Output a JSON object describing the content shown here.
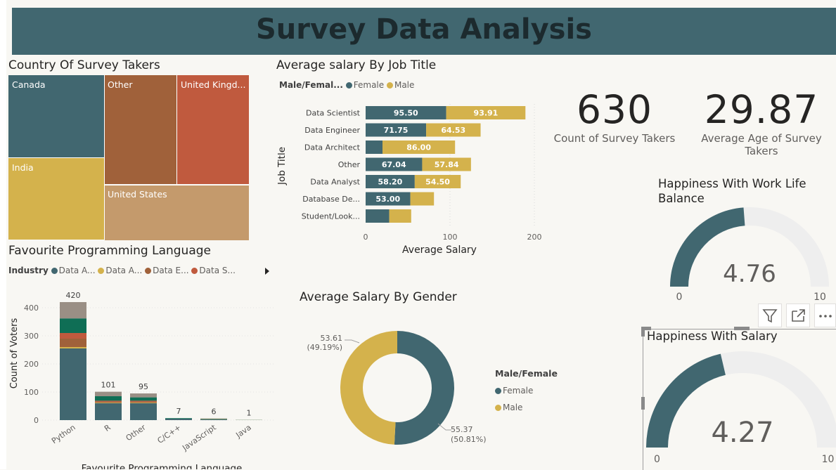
{
  "title": "Survey Data Analysis",
  "colors": {
    "header_bg": "#416770",
    "teal": "#416770",
    "gold": "#d4b24c",
    "brown": "#a0613a",
    "rust": "#c05a3e",
    "tan": "#c49a6c",
    "green": "#0f6e55",
    "gray": "#9a8f85"
  },
  "treemap": {
    "title": "Country Of Survey Takers",
    "labels": [
      "Canada",
      "Other",
      "United Kingd...",
      "India",
      "United States"
    ]
  },
  "job_title_chart": {
    "title": "Average salary By Job Title",
    "legend_title": "Male/Femal...",
    "legend_items": [
      "Female",
      "Male"
    ],
    "y_axis_title": "Job Title",
    "x_axis_title": "Average Salary",
    "x_ticks": [
      "0",
      "100",
      "200"
    ]
  },
  "kpis": [
    {
      "value": "630",
      "label": "Count of Survey Takers"
    },
    {
      "value": "29.87",
      "label": "Average Age of Survey Takers"
    }
  ],
  "lang_chart": {
    "title": "Favourite Programming Language",
    "legend_title": "Industry",
    "legend_items": [
      "Data A...",
      "Data A...",
      "Data E...",
      "Data S..."
    ],
    "y_axis_title": "Count of Voters",
    "x_axis_title": "Favourite Programming Language",
    "y_ticks": [
      "0",
      "100",
      "200",
      "300",
      "400"
    ]
  },
  "gender_chart": {
    "title": "Average Salary By Gender",
    "legend_title": "Male/Female",
    "legend_items": [
      "Female",
      "Male"
    ],
    "labels": [
      {
        "value": "53.61",
        "pct": "(49.19%)"
      },
      {
        "value": "55.37",
        "pct": "(50.81%)"
      }
    ]
  },
  "gauge_wlb": {
    "title": "Happiness With Work Life Balance",
    "value_text": "4.76",
    "min_text": "0",
    "max_text": "10"
  },
  "gauge_salary": {
    "title": "Happiness With Salary",
    "value_text": "4.27",
    "min_text": "0",
    "max_text": "10"
  },
  "chart_data": [
    {
      "type": "treemap",
      "title": "Country Of Survey Takers",
      "categories": [
        "Canada",
        "Other",
        "United Kingd...",
        "India",
        "United States"
      ]
    },
    {
      "type": "bar",
      "orientation": "horizontal",
      "stacked": true,
      "title": "Average salary By Job Title",
      "xlabel": "Average Salary",
      "ylabel": "Job Title",
      "xlim": [
        0,
        200
      ],
      "categories": [
        "Data Scientist",
        "Data Engineer",
        "Data Architect",
        "Other",
        "Data Analyst",
        "Database De...",
        "Student/Look..."
      ],
      "series": [
        {
          "name": "Female",
          "values": [
            95.5,
            71.75,
            20,
            67.04,
            58.2,
            53.0,
            28
          ]
        },
        {
          "name": "Male",
          "values": [
            93.91,
            64.53,
            86.0,
            57.84,
            54.5,
            28,
            26
          ]
        }
      ],
      "value_labels": [
        [
          "95.50",
          "71.75",
          "",
          "67.04",
          "58.20",
          "53.00",
          ""
        ],
        [
          "93.91",
          "64.53",
          "86.00",
          "57.84",
          "54.50",
          "",
          ""
        ]
      ]
    },
    {
      "type": "bar",
      "stacked": true,
      "title": "Favourite Programming Language",
      "xlabel": "Favourite Programming Language",
      "ylabel": "Count of Voters",
      "ylim": [
        0,
        450
      ],
      "legend_title": "Industry",
      "categories": [
        "Python",
        "R",
        "Other",
        "C/C++",
        "JavaScript",
        "Java"
      ],
      "totals": [
        420,
        101,
        95,
        7,
        6,
        1
      ],
      "series": [
        {
          "name": "Data A...",
          "color": "#416770",
          "values": [
            255,
            60,
            60,
            5,
            3,
            0.5
          ]
        },
        {
          "name": "Data A...",
          "color": "#d4b24c",
          "values": [
            5,
            2,
            2,
            0,
            1,
            0.3
          ]
        },
        {
          "name": "Data E...",
          "color": "#a0613a",
          "values": [
            30,
            4,
            4,
            0,
            0,
            0
          ]
        },
        {
          "name": "Data S...",
          "color": "#c05a3e",
          "values": [
            20,
            3,
            3,
            0,
            0,
            0
          ]
        },
        {
          "name": "",
          "color": "#0f6e55",
          "values": [
            52,
            16,
            12,
            2,
            1,
            0.2
          ]
        },
        {
          "name": "",
          "color": "#9a8f85",
          "values": [
            58,
            16,
            14,
            0,
            1,
            0
          ]
        }
      ]
    },
    {
      "type": "pie",
      "donut": true,
      "title": "Average Salary By Gender",
      "categories": [
        "Female",
        "Male"
      ],
      "values": [
        55.37,
        53.61
      ],
      "percents": [
        50.81,
        49.19
      ]
    },
    {
      "type": "gauge",
      "title": "Happiness With Work Life Balance",
      "value": 4.76,
      "min": 0,
      "max": 10
    },
    {
      "type": "gauge",
      "title": "Happiness With Salary",
      "value": 4.27,
      "min": 0,
      "max": 10
    }
  ]
}
